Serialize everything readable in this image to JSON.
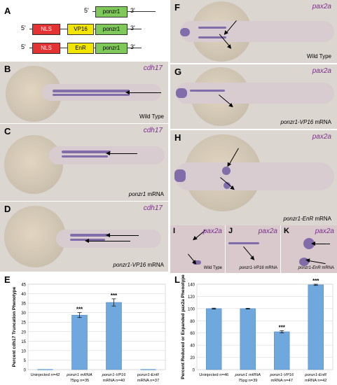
{
  "panels": {
    "A": {
      "label": "A",
      "constructs": [
        {
          "five": "5'",
          "three": "3'",
          "parts": [
            "ponzr1"
          ]
        },
        {
          "five": "5'",
          "three": "3'",
          "parts": [
            "NLS",
            "VP16",
            "ponzr1"
          ]
        },
        {
          "five": "5'",
          "three": "3'",
          "parts": [
            "NLS",
            "EnR",
            "ponzr1"
          ]
        }
      ]
    },
    "B": {
      "label": "B",
      "gene": "cdh17",
      "cond": "Wild Type"
    },
    "C": {
      "label": "C",
      "gene": "cdh17",
      "cond_italic": "ponzr1",
      "cond_rest": " mRNA"
    },
    "D": {
      "label": "D",
      "gene": "cdh17",
      "cond_italic": "ponzr1-VP16",
      "cond_rest": " mRNA"
    },
    "F": {
      "label": "F",
      "gene": "pax2a",
      "cond": "Wild Type"
    },
    "G": {
      "label": "G",
      "gene": "pax2a",
      "cond_italic": "ponzr1-VP16",
      "cond_rest": " mRNA"
    },
    "H": {
      "label": "H",
      "gene": "pax2a",
      "cond_italic": "ponzr1-EnR",
      "cond_rest": " mRNA"
    },
    "I": {
      "label": "I",
      "gene": "pax2a",
      "cond": "Wild Type"
    },
    "J": {
      "label": "J",
      "gene": "pax2a",
      "cond_italic": "ponzr1-VP16",
      "cond_rest": " mRNA"
    },
    "K": {
      "label": "K",
      "gene": "pax2a",
      "cond_italic": "ponzr1-EnR",
      "cond_rest": " mRNA"
    },
    "E": {
      "label": "E"
    },
    "L": {
      "label": "L"
    }
  },
  "chart_data": [
    {
      "type": "bar",
      "panel": "E",
      "ylabel": "Percent cdh17 Truncation Phenotype",
      "ylim": [
        0,
        45
      ],
      "yticks": [
        "0",
        "5",
        "10",
        "15",
        "20",
        "25",
        "30",
        "35",
        "40",
        "45"
      ],
      "categories": [
        "Uninjected n=42",
        "ponzr1 mRNA 75pg n=35",
        "ponzr1-VP16 mRNA n=40",
        "ponzr1-EnR mRNA n=37"
      ],
      "cat_lines": [
        [
          "Uninjected n=42"
        ],
        [
          "ponzr1 mRNA",
          "75pg n=35"
        ],
        [
          "ponzr1-VP16",
          "mRNA n=40"
        ],
        [
          "ponzr1-EnR",
          "mRNA n=37"
        ]
      ],
      "values": [
        0,
        28.7,
        35.4,
        0
      ],
      "errors": [
        0,
        1.3,
        1.9,
        0
      ],
      "significance": [
        "",
        "***",
        "***",
        ""
      ],
      "color": "#6fa8dc"
    },
    {
      "type": "bar",
      "panel": "L",
      "ylabel": "Percent Reduced or Expanded pax2a Phenotype",
      "ylim": [
        0,
        140
      ],
      "yticks": [
        "0",
        "20",
        "40",
        "60",
        "80",
        "100",
        "120",
        "140"
      ],
      "categories": [
        "Uninjected n=46",
        "ponzr1 mRNA 75pg n=39",
        "ponzr1-VP16 mRNA n=47",
        "ponzr1-EnR mRNA n=42"
      ],
      "cat_lines": [
        [
          "Uninjected n=46"
        ],
        [
          "ponzr1 mRNA",
          "75pg n=39"
        ],
        [
          "ponzr1-VP16",
          "mRNA n=47"
        ],
        [
          "ponzr1-EnR",
          "mRNA n=42"
        ]
      ],
      "values": [
        100,
        100,
        62,
        139
      ],
      "errors": [
        0.8,
        0.6,
        1.8,
        1.0
      ],
      "significance": [
        "",
        "",
        "***",
        "***"
      ],
      "color": "#6fa8dc"
    }
  ]
}
